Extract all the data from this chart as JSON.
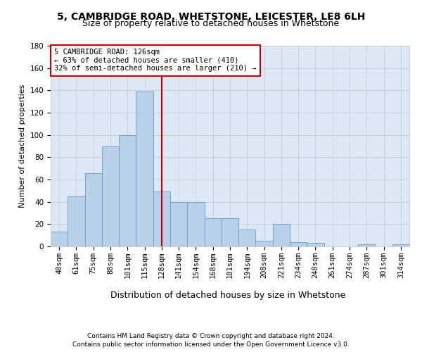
{
  "title_line1": "5, CAMBRIDGE ROAD, WHETSTONE, LEICESTER, LE8 6LH",
  "title_line2": "Size of property relative to detached houses in Whetstone",
  "xlabel": "Distribution of detached houses by size in Whetstone",
  "ylabel": "Number of detached properties",
  "bar_values": [
    13,
    45,
    66,
    90,
    100,
    139,
    49,
    40,
    40,
    25,
    25,
    15,
    5,
    20,
    4,
    3,
    0,
    0,
    2,
    0,
    2
  ],
  "categories": [
    "48sqm",
    "61sqm",
    "75sqm",
    "88sqm",
    "101sqm",
    "115sqm",
    "128sqm",
    "141sqm",
    "154sqm",
    "168sqm",
    "181sqm",
    "194sqm",
    "208sqm",
    "221sqm",
    "234sqm",
    "248sqm",
    "261sqm",
    "274sqm",
    "287sqm",
    "301sqm",
    "314sqm"
  ],
  "bar_color": "#b8d0e8",
  "bar_edge_color": "#6699cc",
  "vline_x_index": 6,
  "vline_color": "#cc0000",
  "annotation_line1": "5 CAMBRIDGE ROAD: 126sqm",
  "annotation_line2": "← 63% of detached houses are smaller (410)",
  "annotation_line3": "32% of semi-detached houses are larger (210) →",
  "annotation_box_color": "#ffffff",
  "annotation_box_edge": "#cc0000",
  "ylim": [
    0,
    180
  ],
  "yticks": [
    0,
    20,
    40,
    60,
    80,
    100,
    120,
    140,
    160,
    180
  ],
  "grid_color": "#cccccc",
  "plot_bg_color": "#dce8f5",
  "background_color": "#ffffff",
  "footer_line1": "Contains HM Land Registry data © Crown copyright and database right 2024.",
  "footer_line2": "Contains public sector information licensed under the Open Government Licence v3.0.",
  "title_fontsize": 10,
  "subtitle_fontsize": 9,
  "ylabel_fontsize": 8,
  "xlabel_fontsize": 9,
  "tick_fontsize": 7.5,
  "annotation_fontsize": 7.5,
  "footer_fontsize": 6.5
}
